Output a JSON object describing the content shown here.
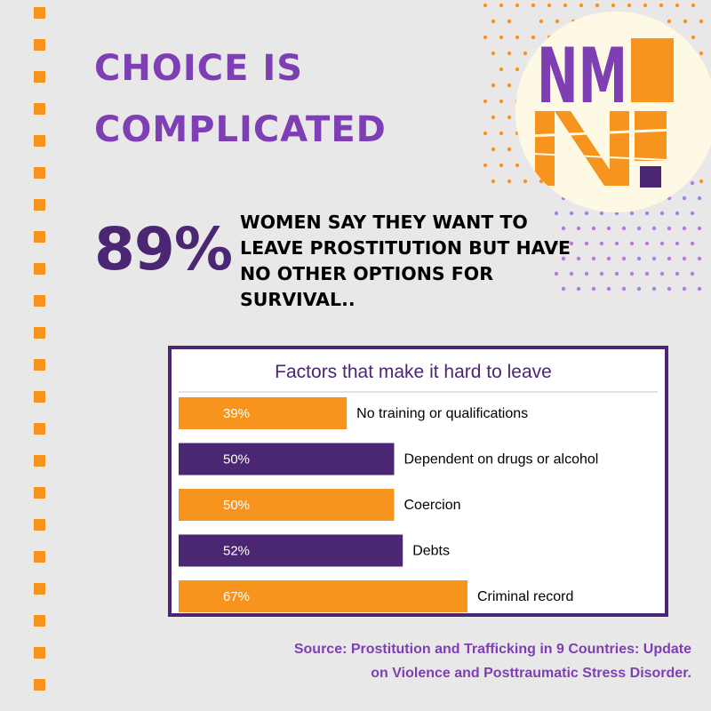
{
  "headline": {
    "line1": "Choice is",
    "line2": "complicated"
  },
  "stat": {
    "value": "89%",
    "text": "WOMEN SAY THEY WANT TO LEAVE PROSTITUTION BUT HAVE NO OTHER OPTIONS FOR SURVIVAL.."
  },
  "logo": {
    "text": "NMN!"
  },
  "source": {
    "line1": "Source: Prostitution and Trafficking in 9 Countries: Update",
    "line2": "on Violence and Posttraumatic Stress Disorder."
  },
  "colors": {
    "orange": "#f7941d",
    "purple": "#4b2672",
    "title_purple": "#7e3fb5",
    "background": "#e9e8e9"
  },
  "chart_data": {
    "type": "bar",
    "orientation": "horizontal",
    "title": "Factors that make it hard to leave",
    "categories": [
      "No training or qualifications",
      "Dependent on drugs or alcohol",
      "Coercion",
      "Debts",
      "Criminal record"
    ],
    "values": [
      39,
      50,
      50,
      52,
      67
    ],
    "value_labels": [
      "39%",
      "50%",
      "50%",
      "52%",
      "67%"
    ],
    "bar_colors": [
      "#f7941d",
      "#4b2672",
      "#f7941d",
      "#4b2672",
      "#f7941d"
    ],
    "xlim": [
      0,
      100
    ],
    "grid": false
  }
}
